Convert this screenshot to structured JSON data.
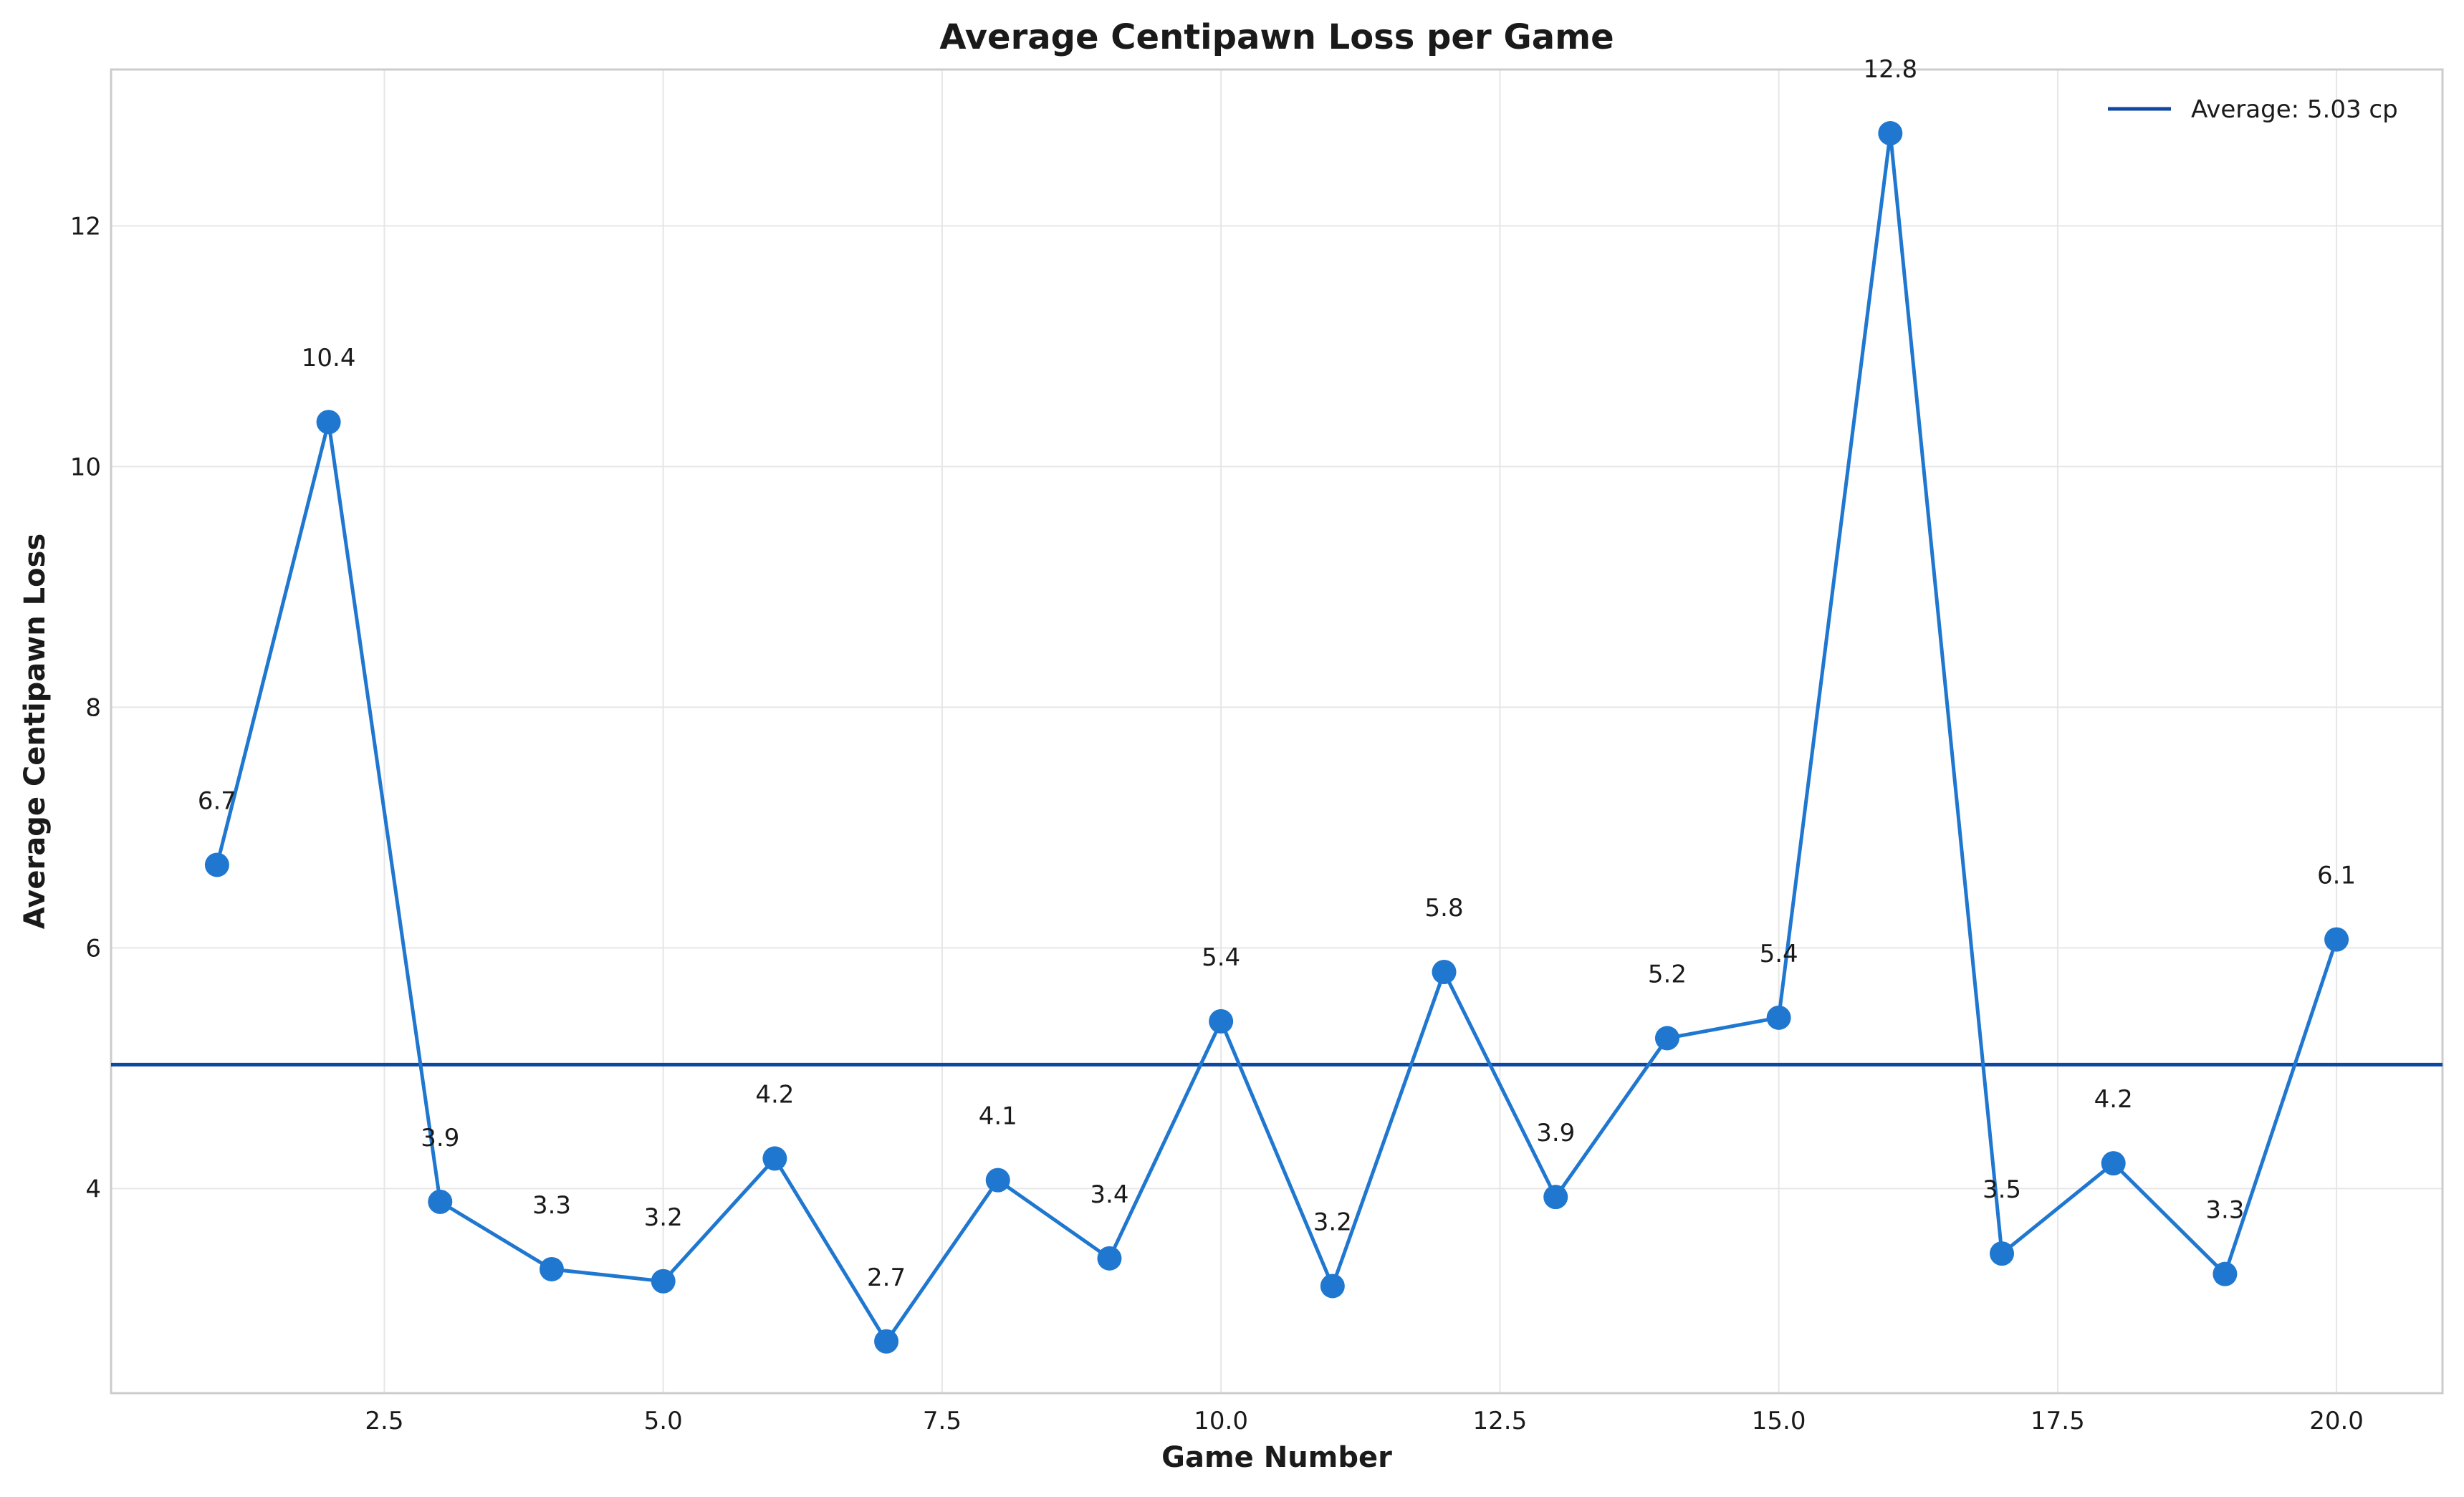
{
  "chart_data": {
    "type": "line",
    "title": "Average Centipawn Loss per Game",
    "xlabel": "Game Number",
    "ylabel": "Average Centipawn Loss",
    "x": [
      1,
      2,
      3,
      4,
      5,
      6,
      7,
      8,
      9,
      10,
      11,
      12,
      13,
      14,
      15,
      16,
      17,
      18,
      19,
      20
    ],
    "values": [
      6.69,
      10.37,
      3.89,
      3.33,
      3.23,
      4.25,
      2.73,
      4.07,
      3.42,
      5.39,
      3.19,
      5.8,
      3.93,
      5.25,
      5.42,
      12.77,
      3.46,
      4.21,
      3.29,
      6.07
    ],
    "point_labels": [
      "6.7",
      "10.4",
      "3.9",
      "3.3",
      "3.2",
      "4.2",
      "2.7",
      "4.1",
      "3.4",
      "5.4",
      "3.2",
      "5.8",
      "3.9",
      "5.2",
      "5.4",
      "12.8",
      "3.5",
      "4.2",
      "3.3",
      "6.1"
    ],
    "xlim": [
      0.05,
      20.95
    ],
    "ylim": [
      2.3,
      13.3
    ],
    "xticks": [
      2.5,
      5.0,
      7.5,
      10.0,
      12.5,
      15.0,
      17.5,
      20.0
    ],
    "xtick_labels": [
      "2.5",
      "5.0",
      "7.5",
      "10.0",
      "12.5",
      "15.0",
      "17.5",
      "20.0"
    ],
    "yticks": [
      4,
      6,
      8,
      10,
      12
    ],
    "ytick_labels": [
      "4",
      "6",
      "8",
      "10",
      "12"
    ],
    "average": 5.03,
    "legend": {
      "entries": [
        "Average: 5.03 cp"
      ],
      "placement": "top-right"
    },
    "grid": true,
    "colors": {
      "series": "#1f77d0",
      "average_line": "#0d47a1"
    }
  }
}
